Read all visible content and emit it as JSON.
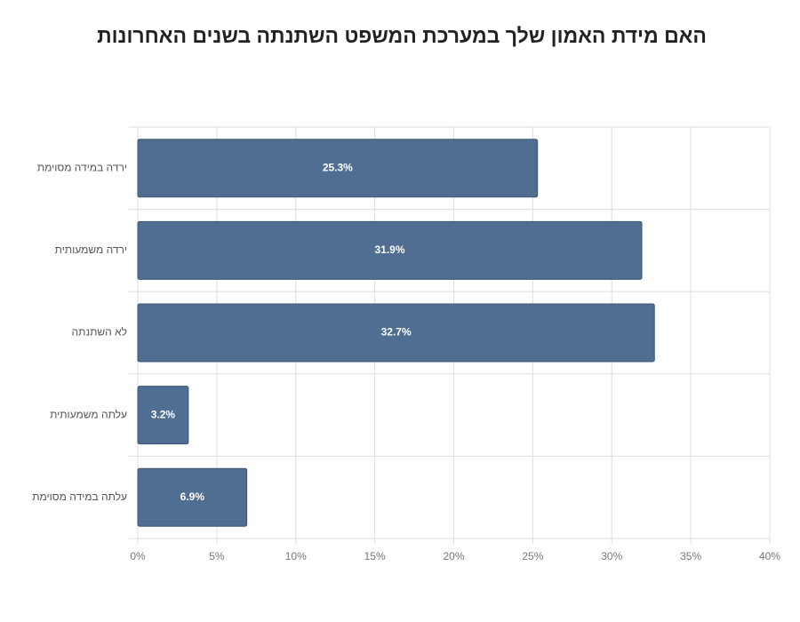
{
  "chart_data": {
    "type": "bar",
    "orientation": "horizontal",
    "title": "האם מידת האמון שלך במערכת המשפט השתנתה בשנים האחרונות",
    "categories": [
      "ירדה במידה מסוימת",
      "ירדה משמעותית",
      "לא השתנתה",
      "עלתה משמעותית",
      "עלתה במידה מסוימת"
    ],
    "values": [
      25.3,
      31.9,
      32.7,
      3.2,
      6.9
    ],
    "value_labels": [
      "25.3%",
      "31.9%",
      "32.7%",
      "3.2%",
      "6.9%"
    ],
    "color": "#506e91",
    "xlim": [
      0,
      40
    ],
    "xticks": [
      {
        "value": 0,
        "label": "0%"
      },
      {
        "value": 5,
        "label": "5%"
      },
      {
        "value": 10,
        "label": "10%"
      },
      {
        "value": 15,
        "label": "15%"
      },
      {
        "value": 20,
        "label": "20%"
      },
      {
        "value": 25,
        "label": "25%"
      },
      {
        "value": 30,
        "label": "30%"
      },
      {
        "value": 35,
        "label": "35%"
      },
      {
        "value": 40,
        "label": "40%"
      }
    ],
    "grid": true
  }
}
